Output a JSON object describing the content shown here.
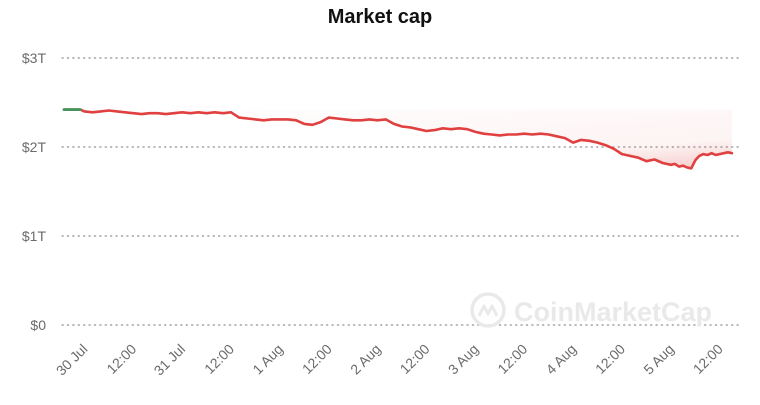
{
  "chart_data": {
    "type": "line",
    "title": "Market cap",
    "xlabel": "",
    "ylabel": "",
    "x_ticks": [
      "30 Jul",
      "12:00",
      "31 Jul",
      "12:00",
      "1 Aug",
      "12:00",
      "2 Aug",
      "12:00",
      "3 Aug",
      "12:00",
      "4 Aug",
      "12:00",
      "5 Aug",
      "12:00"
    ],
    "x_tick_hours": [
      0,
      12,
      24,
      36,
      48,
      60,
      72,
      84,
      96,
      108,
      120,
      132,
      144,
      156
    ],
    "y_ticks": [
      "$0",
      "$1T",
      "$2T",
      "$3T"
    ],
    "ylim": [
      0,
      3
    ],
    "y_unit": "T",
    "grid": "dotted-horizontal",
    "legend": "none",
    "series": [
      {
        "color": "#e0403f",
        "start_color": "#3a9a5c",
        "x_hours": [
          -5,
          -3,
          -1,
          0,
          2,
          4,
          6,
          8,
          10,
          12,
          14,
          16,
          18,
          20,
          22,
          24,
          26,
          28,
          30,
          32,
          34,
          36,
          38,
          40,
          42,
          44,
          46,
          48,
          50,
          52,
          54,
          56,
          58,
          60,
          62,
          64,
          66,
          68,
          70,
          72,
          74,
          76,
          78,
          80,
          82,
          84,
          86,
          88,
          90,
          92,
          94,
          96,
          98,
          100,
          102,
          104,
          106,
          108,
          110,
          112,
          114,
          116,
          118,
          120,
          122,
          124,
          126,
          128,
          130,
          132,
          134,
          136,
          138,
          140,
          142,
          144,
          145,
          146,
          147,
          148,
          149,
          150,
          151,
          152,
          153,
          154,
          155,
          156,
          157,
          158,
          159
        ],
        "values": [
          2.42,
          2.42,
          2.42,
          2.4,
          2.39,
          2.4,
          2.41,
          2.4,
          2.39,
          2.38,
          2.37,
          2.38,
          2.38,
          2.37,
          2.38,
          2.39,
          2.38,
          2.39,
          2.38,
          2.39,
          2.38,
          2.39,
          2.33,
          2.32,
          2.31,
          2.3,
          2.31,
          2.31,
          2.31,
          2.3,
          2.26,
          2.25,
          2.28,
          2.33,
          2.32,
          2.31,
          2.3,
          2.3,
          2.31,
          2.3,
          2.31,
          2.26,
          2.23,
          2.22,
          2.2,
          2.18,
          2.19,
          2.21,
          2.2,
          2.21,
          2.2,
          2.17,
          2.15,
          2.14,
          2.13,
          2.14,
          2.14,
          2.15,
          2.14,
          2.15,
          2.14,
          2.12,
          2.1,
          2.05,
          2.08,
          2.07,
          2.05,
          2.02,
          1.98,
          1.92,
          1.9,
          1.88,
          1.84,
          1.86,
          1.82,
          1.8,
          1.81,
          1.78,
          1.79,
          1.77,
          1.76,
          1.85,
          1.9,
          1.92,
          1.91,
          1.93,
          1.91,
          1.92,
          1.93,
          1.94,
          1.93
        ]
      }
    ]
  },
  "watermark": {
    "text": "CoinMarketCap",
    "icon": "coinmarketcap-logo-icon"
  }
}
